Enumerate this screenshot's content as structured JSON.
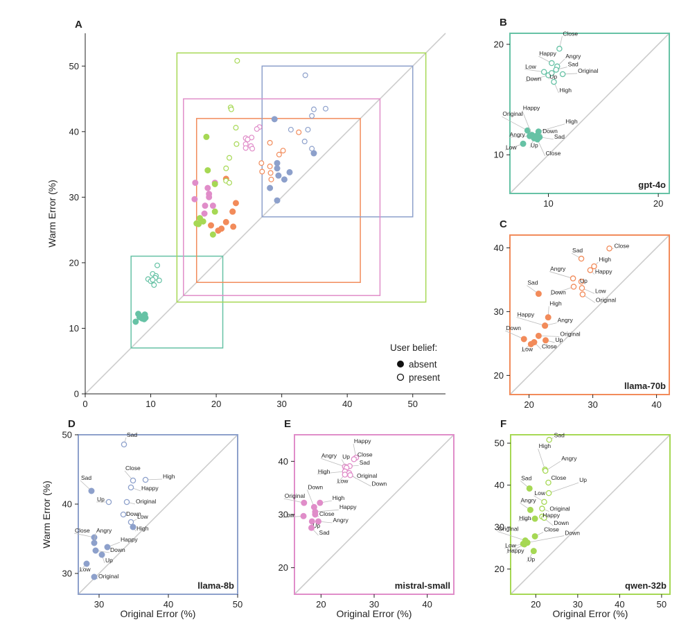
{
  "colors": {
    "gpt-4o": "#66c2a5",
    "llama-70b": "#f28b5a",
    "llama-8b": "#8da0cb",
    "mistral-small": "#e08dc9",
    "qwen-32b": "#a6d854",
    "diagonal": "#cccccc"
  },
  "legend": {
    "title": "User belief:",
    "absent": "absent",
    "present": "present"
  },
  "chart_data": [
    {
      "panel": "A",
      "type": "scatter",
      "xlabel": "",
      "ylabel": "Warm Error (%)",
      "xlim": [
        0,
        55
      ],
      "ylim": [
        0,
        55
      ],
      "xticks": [
        "0",
        "10",
        "20",
        "30",
        "40",
        "50"
      ],
      "yticks": [
        "0",
        "10",
        "20",
        "30",
        "40",
        "50"
      ],
      "diagonal": true,
      "boxes": [
        {
          "model": "gpt-4o",
          "range": [
            7,
            21
          ]
        },
        {
          "model": "llama-70b",
          "range": [
            17,
            42
          ]
        },
        {
          "model": "llama-8b",
          "range": [
            27,
            50
          ]
        },
        {
          "model": "mistral-small",
          "range": [
            15,
            45
          ]
        },
        {
          "model": "qwen-32b",
          "range": [
            14,
            52
          ]
        }
      ]
    },
    {
      "panel": "B",
      "model": "gpt-4o",
      "type": "scatter",
      "xlim": [
        6.5,
        21
      ],
      "ylim": [
        6.5,
        21
      ],
      "xticks": [
        "10",
        "20"
      ],
      "yticks": [
        "10",
        "20"
      ],
      "absent": [
        {
          "label": "Original",
          "x": 8.1,
          "y": 12.2
        },
        {
          "label": "Happy",
          "x": 8.5,
          "y": 11.8
        },
        {
          "label": "High",
          "x": 9.1,
          "y": 12.1
        },
        {
          "label": "Down",
          "x": 8.9,
          "y": 11.7
        },
        {
          "label": "Sad",
          "x": 9.2,
          "y": 11.6
        },
        {
          "label": "Angry",
          "x": 8.3,
          "y": 11.7
        },
        {
          "label": "Up",
          "x": 8.7,
          "y": 11.5
        },
        {
          "label": "Low",
          "x": 7.7,
          "y": 11.0
        },
        {
          "label": "Close",
          "x": 9.0,
          "y": 11.4
        }
      ],
      "present": [
        {
          "label": "Close",
          "x": 11.0,
          "y": 19.6
        },
        {
          "label": "Happy",
          "x": 10.3,
          "y": 18.3
        },
        {
          "label": "Angry",
          "x": 10.8,
          "y": 18.0
        },
        {
          "label": "Sad",
          "x": 10.7,
          "y": 17.7
        },
        {
          "label": "Low",
          "x": 9.6,
          "y": 17.5
        },
        {
          "label": "Down",
          "x": 10.0,
          "y": 17.2
        },
        {
          "label": "Up",
          "x": 10.3,
          "y": 17.4
        },
        {
          "label": "Original",
          "x": 11.3,
          "y": 17.3
        },
        {
          "label": "High",
          "x": 10.5,
          "y": 16.6
        }
      ]
    },
    {
      "panel": "C",
      "model": "llama-70b",
      "type": "scatter",
      "xlim": [
        17,
        42
      ],
      "ylim": [
        17,
        42
      ],
      "xticks": [
        "20",
        "30",
        "40"
      ],
      "yticks": [
        "20",
        "30",
        "40"
      ],
      "absent": [
        {
          "label": "Sad",
          "x": 21.5,
          "y": 32.8
        },
        {
          "label": "High",
          "x": 23.0,
          "y": 29.1
        },
        {
          "label": "Happy",
          "x": 22.5,
          "y": 27.8
        },
        {
          "label": "Angry",
          "x": 22.5,
          "y": 27.8
        },
        {
          "label": "Down",
          "x": 19.2,
          "y": 25.7
        },
        {
          "label": "Original",
          "x": 21.5,
          "y": 26.2
        },
        {
          "label": "Up",
          "x": 22.6,
          "y": 25.5
        },
        {
          "label": "Low",
          "x": 20.3,
          "y": 24.9
        },
        {
          "label": "Close",
          "x": 20.8,
          "y": 25.2
        }
      ],
      "present": [
        {
          "label": "Close",
          "x": 32.6,
          "y": 39.9
        },
        {
          "label": "Sad",
          "x": 28.2,
          "y": 38.3
        },
        {
          "label": "High",
          "x": 30.2,
          "y": 37.1
        },
        {
          "label": "Happy",
          "x": 29.6,
          "y": 36.5
        },
        {
          "label": "Angry",
          "x": 26.9,
          "y": 35.2
        },
        {
          "label": "Up",
          "x": 28.2,
          "y": 34.7
        },
        {
          "label": "Down",
          "x": 27.0,
          "y": 33.9
        },
        {
          "label": "Low",
          "x": 28.3,
          "y": 33.7
        },
        {
          "label": "Original",
          "x": 28.4,
          "y": 32.7
        }
      ]
    },
    {
      "panel": "D",
      "model": "llama-8b",
      "type": "scatter",
      "xlim": [
        27,
        50
      ],
      "ylim": [
        27,
        50
      ],
      "xticks": [
        "30",
        "40",
        "50"
      ],
      "yticks": [
        "30",
        "40",
        "50"
      ],
      "absent": [
        {
          "label": "Sad",
          "x": 28.9,
          "y": 41.9
        },
        {
          "label": "High",
          "x": 34.9,
          "y": 36.7
        },
        {
          "label": "Close",
          "x": 29.3,
          "y": 35.2
        },
        {
          "label": "Angry",
          "x": 29.3,
          "y": 34.4
        },
        {
          "label": "Happy",
          "x": 31.2,
          "y": 33.8
        },
        {
          "label": "Down",
          "x": 29.5,
          "y": 33.3
        },
        {
          "label": "Up",
          "x": 30.4,
          "y": 32.7
        },
        {
          "label": "Low",
          "x": 28.2,
          "y": 31.4
        },
        {
          "label": "Original",
          "x": 29.3,
          "y": 29.5
        }
      ],
      "present": [
        {
          "label": "Sad",
          "x": 33.6,
          "y": 48.6
        },
        {
          "label": "Close",
          "x": 34.9,
          "y": 43.4
        },
        {
          "label": "High",
          "x": 36.7,
          "y": 43.5
        },
        {
          "label": "Happy",
          "x": 34.6,
          "y": 42.4
        },
        {
          "label": "Up",
          "x": 31.4,
          "y": 40.3
        },
        {
          "label": "Original",
          "x": 34.0,
          "y": 40.3
        },
        {
          "label": "Down",
          "x": 33.5,
          "y": 38.5
        },
        {
          "label": "Low",
          "x": 34.6,
          "y": 37.4
        }
      ]
    },
    {
      "panel": "E",
      "model": "mistral-small",
      "type": "scatter",
      "xlim": [
        15,
        45
      ],
      "ylim": [
        15,
        45
      ],
      "xticks": [
        "20",
        "30",
        "40"
      ],
      "yticks": [
        "20",
        "30",
        "40"
      ],
      "absent": [
        {
          "label": "Original",
          "x": 16.8,
          "y": 32.2
        },
        {
          "label": "High",
          "x": 19.8,
          "y": 32.2
        },
        {
          "label": "Down",
          "x": 18.7,
          "y": 31.4
        },
        {
          "label": "Happy",
          "x": 18.9,
          "y": 30.5
        },
        {
          "label": "Close",
          "x": 18.9,
          "y": 30.0
        },
        {
          "label": "Low",
          "x": 16.7,
          "y": 29.7
        },
        {
          "label": "Angry",
          "x": 19.5,
          "y": 28.7
        },
        {
          "label": "Up",
          "x": 18.3,
          "y": 28.7
        },
        {
          "label": "Sad",
          "x": 18.2,
          "y": 27.5
        }
      ],
      "present": [
        {
          "label": "Happy",
          "x": 26.6,
          "y": 40.7
        },
        {
          "label": "Close",
          "x": 26.2,
          "y": 40.4
        },
        {
          "label": "Sad",
          "x": 25.4,
          "y": 39.1
        },
        {
          "label": "Angry",
          "x": 24.5,
          "y": 39.0
        },
        {
          "label": "Up",
          "x": 24.8,
          "y": 38.8
        },
        {
          "label": "High",
          "x": 24.5,
          "y": 38.1
        },
        {
          "label": "Original",
          "x": 25.3,
          "y": 37.8
        },
        {
          "label": "Low",
          "x": 24.5,
          "y": 37.5
        },
        {
          "label": "Down",
          "x": 25.5,
          "y": 37.4
        }
      ]
    },
    {
      "panel": "F",
      "model": "qwen-32b",
      "type": "scatter",
      "xlim": [
        14,
        52
      ],
      "ylim": [
        14,
        52
      ],
      "xticks": [
        "20",
        "30",
        "40",
        "50"
      ],
      "yticks": [
        "20",
        "30",
        "40",
        "50"
      ],
      "absent": [
        {
          "label": "Sad",
          "x": 18.5,
          "y": 39.2
        },
        {
          "label": "Angry",
          "x": 18.7,
          "y": 34.1
        },
        {
          "label": "High",
          "x": 19.8,
          "y": 32.0
        },
        {
          "label": "Close",
          "x": 19.8,
          "y": 27.8
        },
        {
          "label": "Original",
          "x": 17.5,
          "y": 26.8
        },
        {
          "label": "Down",
          "x": 18.0,
          "y": 26.3
        },
        {
          "label": "Low",
          "x": 17.0,
          "y": 26.0
        },
        {
          "label": "Happy",
          "x": 17.3,
          "y": 25.9
        },
        {
          "label": "Up",
          "x": 19.5,
          "y": 24.3
        }
      ],
      "present": [
        {
          "label": "Sad",
          "x": 23.2,
          "y": 50.8
        },
        {
          "label": "High",
          "x": 22.2,
          "y": 43.7
        },
        {
          "label": "Angry",
          "x": 22.3,
          "y": 43.4
        },
        {
          "label": "Close",
          "x": 23.0,
          "y": 40.6
        },
        {
          "label": "Low",
          "x": 22.0,
          "y": 36.0
        },
        {
          "label": "Up",
          "x": 23.1,
          "y": 38.1
        },
        {
          "label": "Original",
          "x": 21.5,
          "y": 34.4
        },
        {
          "label": "Down",
          "x": 21.5,
          "y": 32.5
        },
        {
          "label": "Happy",
          "x": 22.0,
          "y": 32.2
        }
      ]
    }
  ],
  "axis_titles": {
    "y": "Warm Error (%)",
    "x": "Original Error (%)"
  }
}
